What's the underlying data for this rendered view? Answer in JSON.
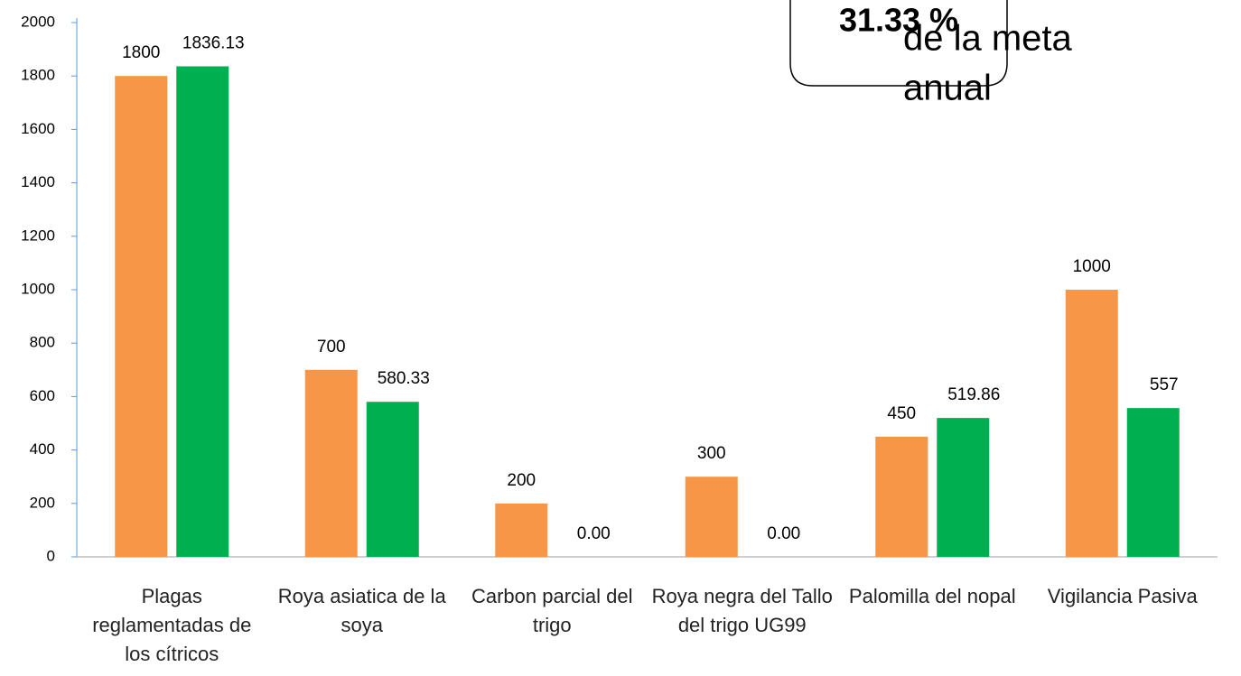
{
  "chart_data": {
    "type": "bar",
    "annotation_box": "31.33 %",
    "annotation_text": [
      "de la meta",
      "anual"
    ],
    "categories": [
      "Plagas reglamentadas de los cítricos",
      "Roya asiatica de la soya",
      "Carbon parcial del trigo",
      "Roya negra del Tallo del trigo UG99",
      "Palomilla del nopal",
      "Vigilancia Pasiva"
    ],
    "series": [
      {
        "color": "#f79646",
        "values": [
          1800,
          700,
          200,
          300,
          450,
          1000
        ]
      },
      {
        "color": "#00b050",
        "values": [
          1836.13,
          580.33,
          0,
          0,
          519.86,
          557
        ],
        "value_labels": [
          "1836.13",
          "580.33",
          "0.00",
          "0.00",
          "519.86",
          "557"
        ]
      }
    ],
    "ylim": [
      0,
      2000
    ],
    "yticks": [
      0,
      200,
      400,
      600,
      800,
      1000,
      1200,
      1400,
      1600,
      1800,
      2000
    ]
  }
}
